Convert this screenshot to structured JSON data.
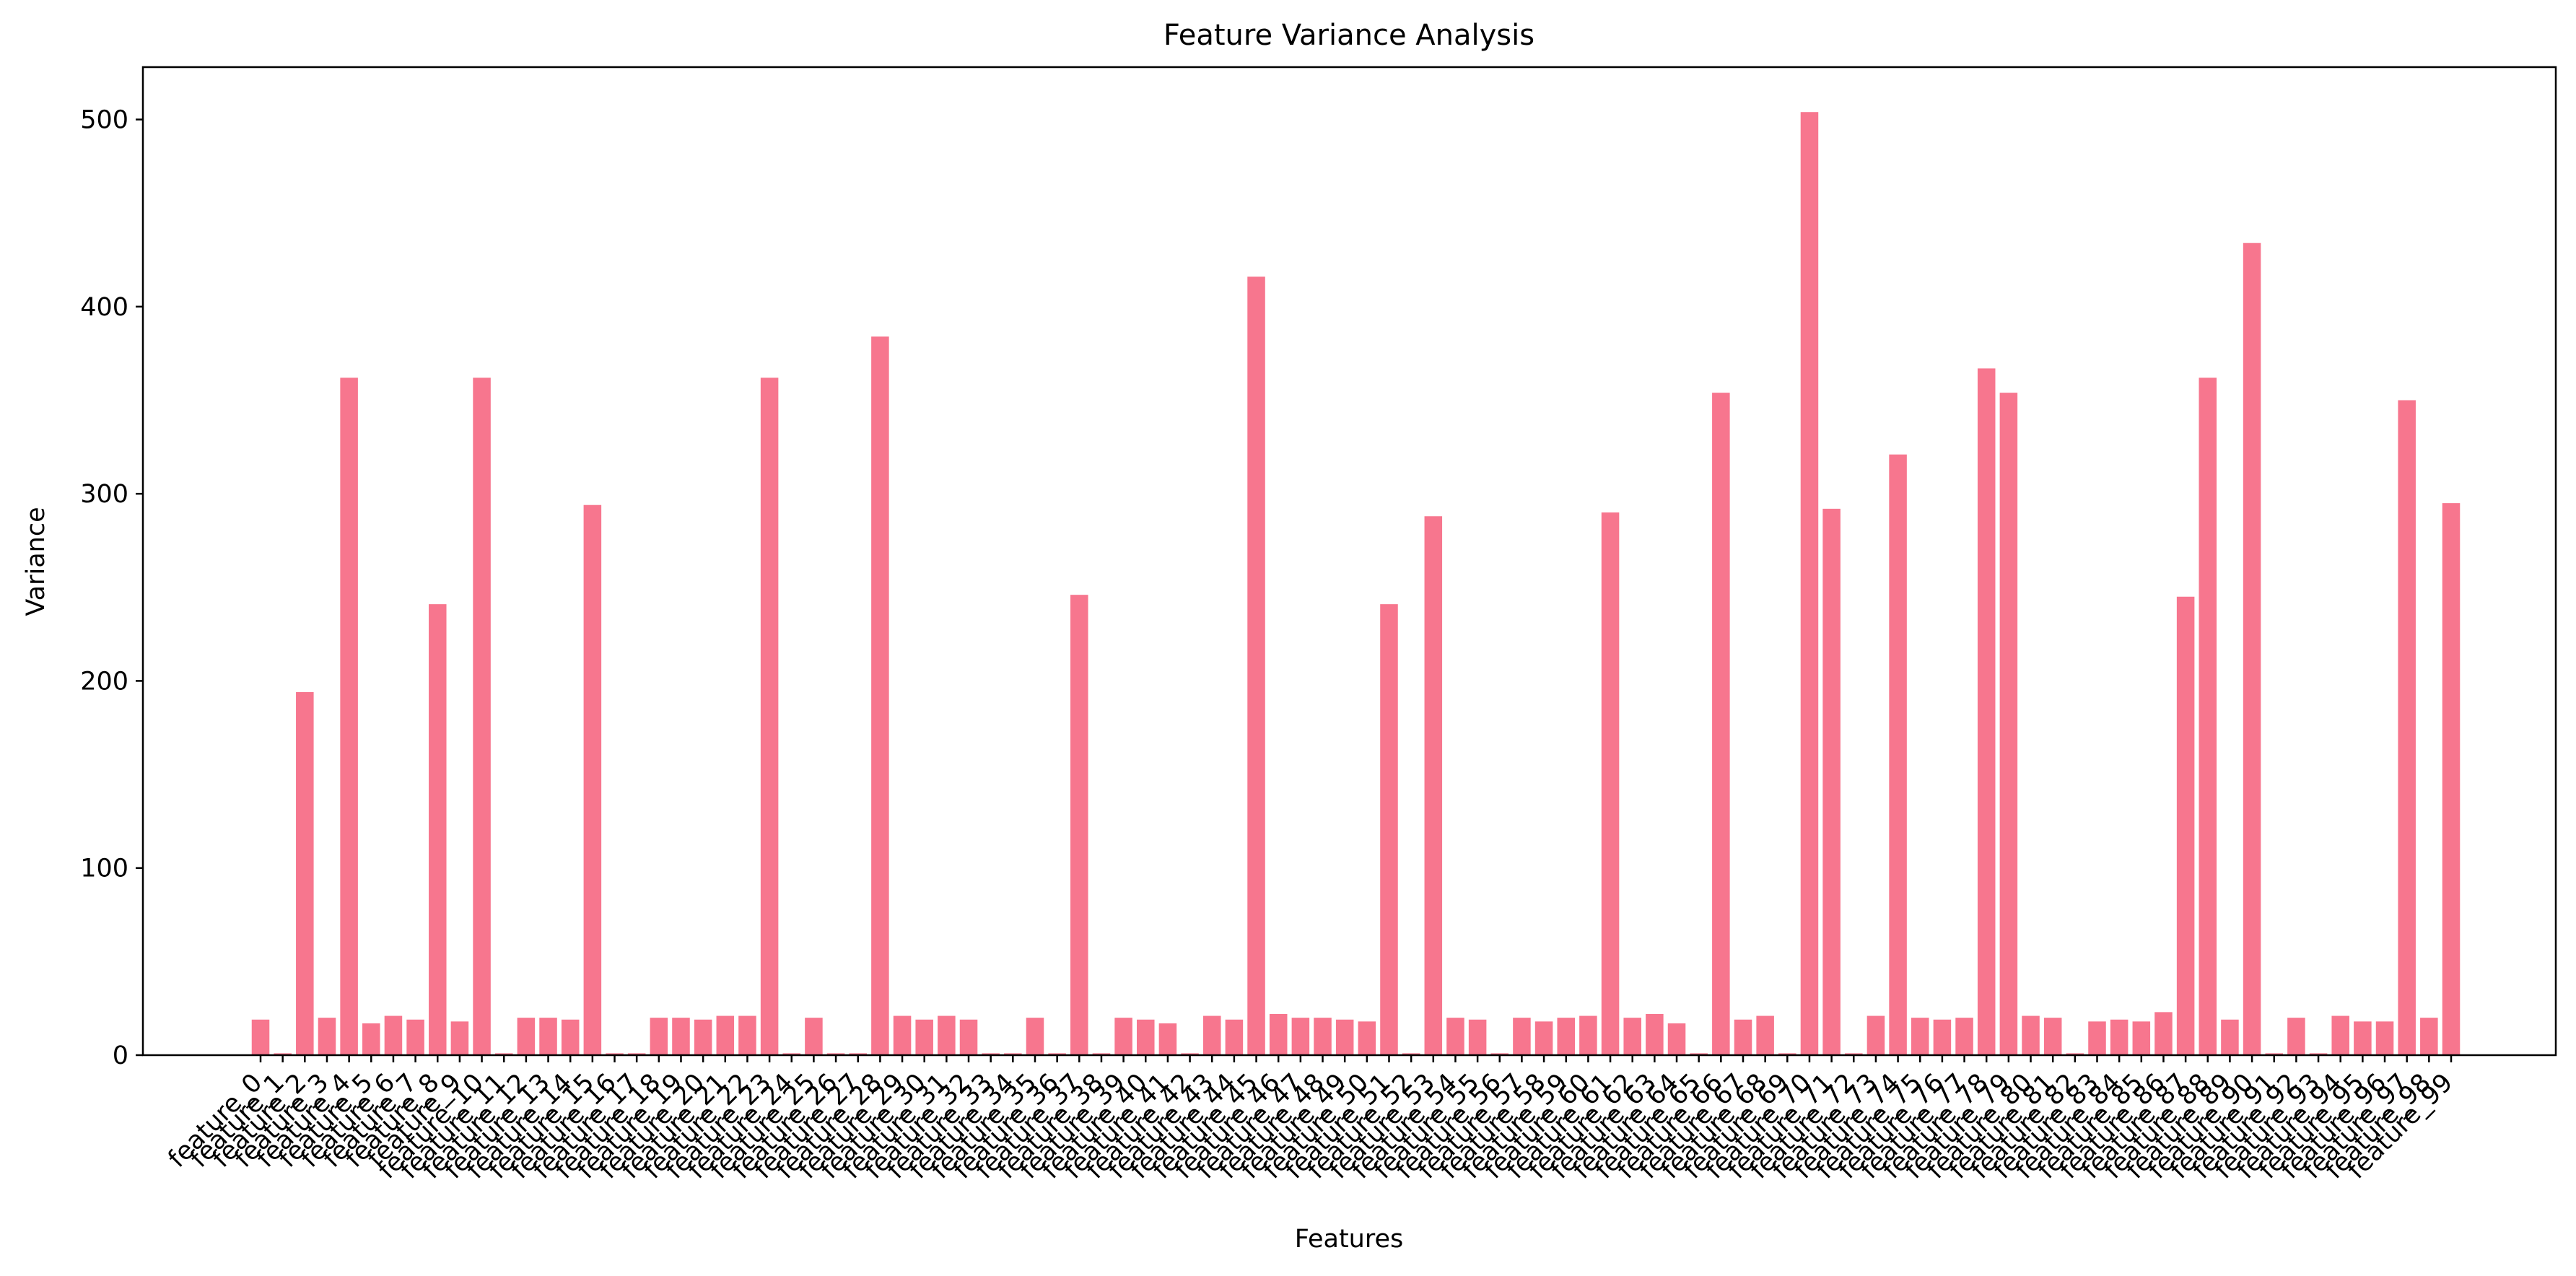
{
  "chart_data": {
    "type": "bar",
    "title": "Feature Variance Analysis",
    "xlabel": "Features",
    "ylabel": "Variance",
    "ylim": [
      0,
      528
    ],
    "yticks": [
      0,
      100,
      200,
      300,
      400,
      500
    ],
    "bar_color": "#f7768e",
    "grid": false,
    "categories": [
      "feature_0",
      "feature_1",
      "feature_2",
      "feature_3",
      "feature_4",
      "feature_5",
      "feature_6",
      "feature_7",
      "feature_8",
      "feature_9",
      "feature_10",
      "feature_11",
      "feature_12",
      "feature_13",
      "feature_14",
      "feature_15",
      "feature_16",
      "feature_17",
      "feature_18",
      "feature_19",
      "feature_20",
      "feature_21",
      "feature_22",
      "feature_23",
      "feature_24",
      "feature_25",
      "feature_26",
      "feature_27",
      "feature_28",
      "feature_29",
      "feature_30",
      "feature_31",
      "feature_32",
      "feature_33",
      "feature_34",
      "feature_35",
      "feature_36",
      "feature_37",
      "feature_38",
      "feature_39",
      "feature_40",
      "feature_41",
      "feature_42",
      "feature_43",
      "feature_44",
      "feature_45",
      "feature_46",
      "feature_47",
      "feature_48",
      "feature_49",
      "feature_50",
      "feature_51",
      "feature_52",
      "feature_53",
      "feature_54",
      "feature_55",
      "feature_56",
      "feature_57",
      "feature_58",
      "feature_59",
      "feature_60",
      "feature_61",
      "feature_62",
      "feature_63",
      "feature_64",
      "feature_65",
      "feature_66",
      "feature_67",
      "feature_68",
      "feature_69",
      "feature_70",
      "feature_71",
      "feature_72",
      "feature_73",
      "feature_74",
      "feature_75",
      "feature_76",
      "feature_77",
      "feature_78",
      "feature_79",
      "feature_80",
      "feature_81",
      "feature_82",
      "feature_83",
      "feature_84",
      "feature_85",
      "feature_86",
      "feature_87",
      "feature_88",
      "feature_89",
      "feature_90",
      "feature_91",
      "feature_92",
      "feature_93",
      "feature_94",
      "feature_95",
      "feature_96",
      "feature_97",
      "feature_98",
      "feature_99"
    ],
    "values": [
      19,
      1,
      194,
      20,
      362,
      17,
      21,
      19,
      241,
      18,
      362,
      1,
      20,
      20,
      19,
      294,
      1,
      1,
      20,
      20,
      19,
      21,
      21,
      362,
      1,
      20,
      1,
      1,
      384,
      21,
      19,
      21,
      19,
      1,
      1,
      20,
      1,
      246,
      1,
      20,
      19,
      17,
      1,
      21,
      19,
      416,
      22,
      20,
      20,
      19,
      18,
      241,
      1,
      288,
      20,
      19,
      1,
      20,
      18,
      20,
      21,
      290,
      20,
      22,
      17,
      1,
      354,
      19,
      21,
      1,
      504,
      292,
      1,
      21,
      321,
      20,
      19,
      20,
      367,
      354,
      21,
      20,
      1,
      18,
      19,
      18,
      23,
      245,
      362,
      19,
      434,
      1,
      20,
      1,
      21,
      18,
      18,
      350,
      20,
      295
    ]
  }
}
